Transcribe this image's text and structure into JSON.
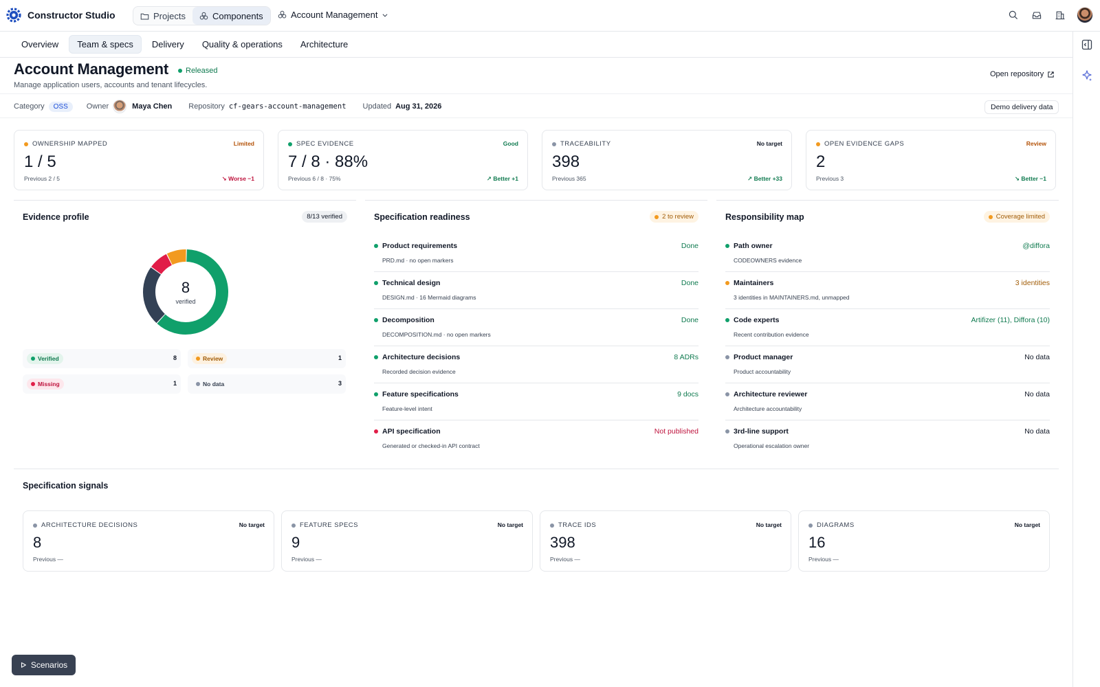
{
  "app": {
    "name": "Constructor Studio",
    "brand_color": "#1f4fbf"
  },
  "nav": {
    "projects_label": "Projects",
    "components_label": "Components",
    "breadcrumb": "Account Management"
  },
  "tabs": [
    "Overview",
    "Team & specs",
    "Delivery",
    "Quality & operations",
    "Architecture"
  ],
  "active_tab": "Team & specs",
  "header": {
    "title": "Account Management",
    "status": "Released",
    "subtitle": "Manage application users, accounts and tenant lifecycles.",
    "open_repo": "Open repository"
  },
  "meta": {
    "category_label": "Category",
    "category": "OSS",
    "owner_label": "Owner",
    "owner": "Maya Chen",
    "repository_label": "Repository",
    "repository": "cf-gears-account-management",
    "updated_label": "Updated",
    "updated": "Aug 31, 2026",
    "demo_button": "Demo delivery data"
  },
  "kpis": [
    {
      "label": "OWNERSHIP MAPPED",
      "status": "Limited",
      "value": "1 / 5",
      "previous": "Previous 2 / 5",
      "delta": "↘ Worse −1"
    },
    {
      "label": "SPEC EVIDENCE",
      "status": "Good",
      "value": "7 / 8 · 88%",
      "previous": "Previous 6 / 8 · 75%",
      "delta": "↗ Better +1"
    },
    {
      "label": "TRACEABILITY",
      "status": "No target",
      "value": "398",
      "previous": "Previous 365",
      "delta": "↗ Better +33"
    },
    {
      "label": "OPEN EVIDENCE GAPS",
      "status": "Review",
      "value": "2",
      "previous": "Previous 3",
      "delta": "↘ Better −1"
    }
  ],
  "evidence": {
    "title": "Evidence profile",
    "badge": "8/13 verified",
    "center_value": "8",
    "center_caption": "verified",
    "legend": [
      {
        "label": "Verified",
        "count": "8"
      },
      {
        "label": "Review",
        "count": "1"
      },
      {
        "label": "Missing",
        "count": "1"
      },
      {
        "label": "No data",
        "count": "3"
      }
    ],
    "colors": {
      "verified": "#10a06b",
      "review": "#f29a1f",
      "missing": "#e11d48",
      "nodata": "#334155"
    }
  },
  "readiness": {
    "title": "Specification readiness",
    "badge": "2 to review",
    "items": [
      {
        "title": "Product requirements",
        "sub": "PRD.md · no open markers",
        "value": "Done"
      },
      {
        "title": "Technical design",
        "sub": "DESIGN.md · 16 Mermaid diagrams",
        "value": "Done"
      },
      {
        "title": "Decomposition",
        "sub": "DECOMPOSITION.md · no open markers",
        "value": "Done"
      },
      {
        "title": "Architecture decisions",
        "sub": "Recorded decision evidence",
        "value": "8 ADRs"
      },
      {
        "title": "Feature specifications",
        "sub": "Feature-level intent",
        "value": "9 docs"
      },
      {
        "title": "API specification",
        "sub": "Generated or checked-in API contract",
        "value": "Not published"
      }
    ]
  },
  "responsibility": {
    "title": "Responsibility map",
    "badge": "Coverage limited",
    "items": [
      {
        "title": "Path owner",
        "sub": "CODEOWNERS evidence",
        "value": "@diffora"
      },
      {
        "title": "Maintainers",
        "sub": "3 identities in MAINTAINERS.md, unmapped",
        "value": "3 identities"
      },
      {
        "title": "Code experts",
        "sub": "Recent contribution evidence",
        "value": "Artifizer (11), Diffora (10)"
      },
      {
        "title": "Product manager",
        "sub": "Product accountability",
        "value": "No data"
      },
      {
        "title": "Architecture reviewer",
        "sub": "Architecture accountability",
        "value": "No data"
      },
      {
        "title": "3rd-line support",
        "sub": "Operational escalation owner",
        "value": "No data"
      }
    ]
  },
  "signals": {
    "title": "Specification signals",
    "cards": [
      {
        "label": "ARCHITECTURE DECISIONS",
        "status": "No target",
        "value": "8",
        "previous": "Previous —"
      },
      {
        "label": "FEATURE SPECS",
        "status": "No target",
        "value": "9",
        "previous": "Previous —"
      },
      {
        "label": "TRACE IDS",
        "status": "No target",
        "value": "398",
        "previous": "Previous —"
      },
      {
        "label": "DIAGRAMS",
        "status": "No target",
        "value": "16",
        "previous": "Previous —"
      }
    ]
  },
  "scenarios_label": "Scenarios"
}
